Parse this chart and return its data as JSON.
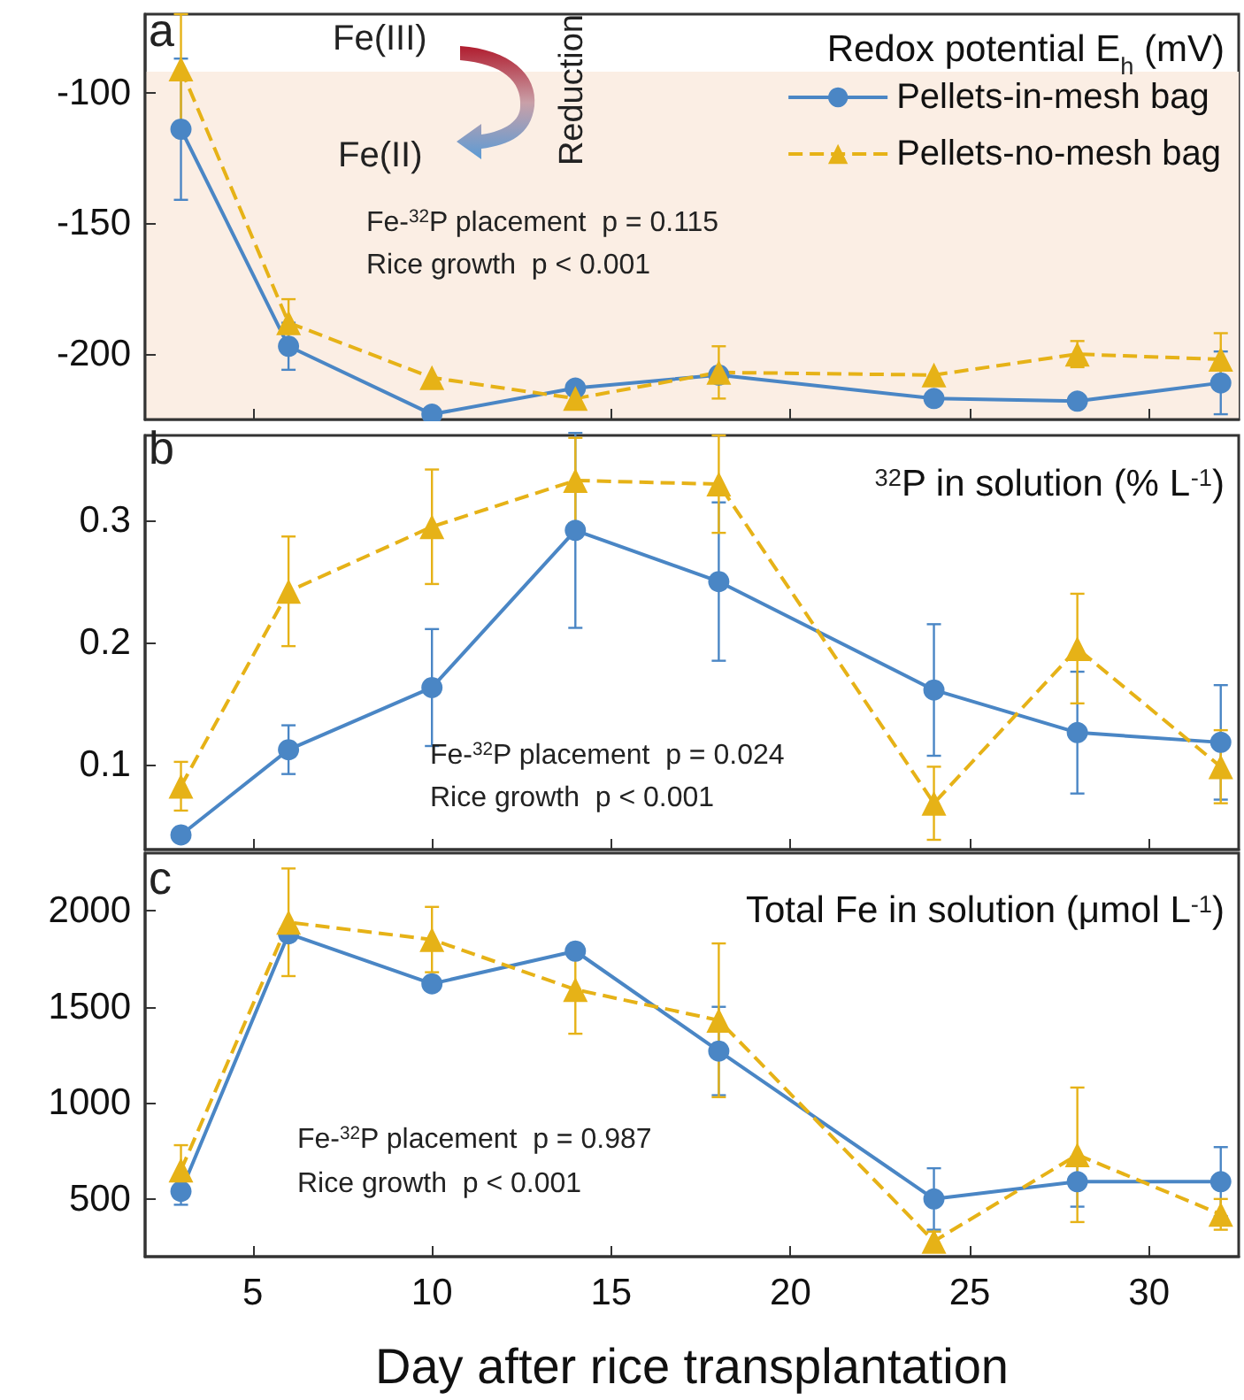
{
  "chart_data": [
    {
      "type": "line",
      "title": "Redox potential E$_{h}$ (mV)",
      "annotations": [
        "a",
        "Fe(III)",
        "Fe(II)",
        "Reduction",
        "Fe-$^{32}$P placement  p = 0.115",
        "Rice growth  p < 0.001"
      ],
      "x": [
        3,
        6,
        10,
        14,
        18,
        24,
        28,
        32
      ],
      "series": [
        {
          "name": "Pellets-in-mesh bag",
          "color": "#4a86c5",
          "marker": "circle",
          "line_style": "solid",
          "values": [
            -114,
            -197,
            -223,
            -213,
            -208,
            -217,
            -218,
            -211
          ],
          "errors": [
            27,
            9,
            null,
            null,
            null,
            null,
            null,
            12
          ]
        },
        {
          "name": "Pellets-no-mesh bag",
          "color": "#e6b217",
          "marker": "triangle",
          "line_style": "dashed",
          "values": [
            -91,
            -188,
            -209,
            -217,
            -207,
            -208,
            -200,
            -202
          ],
          "errors": [
            21,
            9,
            null,
            null,
            10,
            null,
            5,
            10
          ]
        }
      ],
      "bands": [
        {
          "axis": "y",
          "from": -225,
          "to": -92,
          "color": "#fbeee4"
        }
      ],
      "xlim": [
        2,
        32.5
      ],
      "xticks": [
        5,
        10,
        15,
        20,
        25,
        30
      ],
      "ylim": [
        -225,
        -70
      ],
      "yticks": [
        -200,
        -150,
        -100
      ],
      "tick_labels": "y",
      "legend": "top right",
      "grid": false
    },
    {
      "type": "line",
      "title": "$^{32}$P in solution (% L$^{-1}$)",
      "annotations": [
        "b",
        "Fe-$^{32}$P placement  p = 0.024",
        "Rice growth  p < 0.001"
      ],
      "x": [
        3,
        6,
        10,
        14,
        18,
        24,
        28,
        32
      ],
      "series": [
        {
          "color": "#4a86c5",
          "marker": "circle",
          "line_style": "solid",
          "values": [
            0.042,
            0.112,
            0.163,
            0.292,
            0.25,
            0.161,
            0.126,
            0.118
          ],
          "errors": [
            null,
            0.02,
            0.048,
            0.08,
            0.065,
            0.054,
            0.05,
            0.047
          ]
        },
        {
          "color": "#e6b217",
          "marker": "triangle",
          "line_style": "dashed",
          "values": [
            0.082,
            0.242,
            0.295,
            0.333,
            0.33,
            0.068,
            0.195,
            0.098
          ],
          "errors": [
            0.02,
            0.045,
            0.047,
            0.035,
            0.04,
            0.03,
            0.045,
            0.03
          ]
        }
      ],
      "xlim": [
        2,
        32.5
      ],
      "xticks": [
        5,
        10,
        15,
        20,
        25,
        30
      ],
      "ylim": [
        0.03,
        0.37
      ],
      "yticks": [
        0.1,
        0.2,
        0.3
      ],
      "tick_labels": "y",
      "grid": false
    },
    {
      "type": "line",
      "title": "Total Fe in solution (μmol L$^{-1}$)",
      "xlabel": "Day after rice transplantation",
      "annotations": [
        "c",
        "Fe-$^{32}$P placement  p = 0.987",
        "Rice growth  p < 0.001"
      ],
      "x": [
        3,
        6,
        10,
        14,
        18,
        24,
        28,
        32
      ],
      "series": [
        {
          "color": "#4a86c5",
          "marker": "circle",
          "line_style": "solid",
          "values": [
            540,
            1880,
            1620,
            1790,
            1270,
            500,
            590,
            590
          ],
          "errors": [
            70,
            null,
            null,
            null,
            230,
            160,
            130,
            180
          ]
        },
        {
          "color": "#e6b217",
          "marker": "triangle",
          "line_style": "dashed",
          "values": [
            650,
            1940,
            1850,
            1590,
            1430,
            280,
            730,
            420
          ],
          "errors": [
            130,
            280,
            170,
            230,
            400,
            50,
            350,
            80
          ]
        }
      ],
      "xlim": [
        2,
        32.5
      ],
      "xticks": [
        5,
        10,
        15,
        20,
        25,
        30
      ],
      "ylim": [
        200,
        2300
      ],
      "yticks": [
        500,
        1000,
        1500,
        2000
      ],
      "grid": false
    }
  ]
}
